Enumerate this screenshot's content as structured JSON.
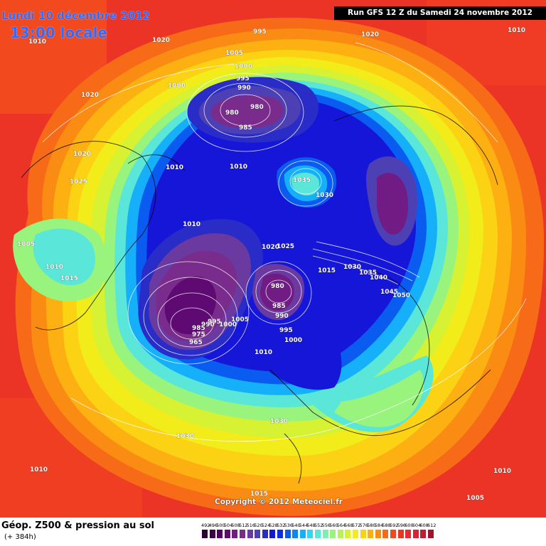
{
  "header": {
    "valid_date": "Lundi 10 décembre 2012",
    "valid_hour": "13:00 locale",
    "run": "Run GFS 12 Z du Samedi 24 novembre 2012"
  },
  "footer": {
    "title": "Géop. Z500 & pression au sol",
    "lead_time": "(+ 384h)",
    "copyright": "Copyright © 2012 Meteociel.fr"
  },
  "legend": {
    "ticks": [
      "492",
      "496",
      "500",
      "504",
      "508",
      "512",
      "516",
      "520",
      "524",
      "528",
      "532",
      "536",
      "540",
      "544",
      "548",
      "552",
      "556",
      "560",
      "564",
      "568",
      "572",
      "576",
      "580",
      "584",
      "588",
      "592",
      "596",
      "600",
      "604",
      "608",
      "612"
    ],
    "colors": [
      "#2a0030",
      "#3a0048",
      "#4b005e",
      "#5e0a72",
      "#701c84",
      "#7a2c8c",
      "#6a3aa0",
      "#4c40b4",
      "#2a2cc8",
      "#1616d8",
      "#0a2ee6",
      "#0a5cf0",
      "#0a86f6",
      "#16b0fa",
      "#34d4f6",
      "#5ae6d8",
      "#7cf0b0",
      "#98f47c",
      "#b6f454",
      "#d6f232",
      "#f2ec1a",
      "#fcd214",
      "#fcb012",
      "#fa8c14",
      "#f66a18",
      "#f24a1e",
      "#ec3426",
      "#e42c30",
      "#d62436",
      "#c01c34",
      "#a0142a"
    ],
    "colors_note_unused": ""
  },
  "pressure_labels": [
    {
      "text": "995"
    },
    {
      "text": "1020"
    },
    {
      "text": "1010"
    },
    {
      "text": "1020"
    },
    {
      "text": "1010"
    },
    {
      "text": "1005"
    },
    {
      "text": "1000"
    },
    {
      "text": "995"
    },
    {
      "text": "990"
    },
    {
      "text": "980"
    },
    {
      "text": "980"
    },
    {
      "text": "985"
    },
    {
      "text": "1000"
    },
    {
      "text": "1020"
    },
    {
      "text": "1020"
    },
    {
      "text": "1025"
    },
    {
      "text": "1010"
    },
    {
      "text": "1010"
    },
    {
      "text": "1035"
    },
    {
      "text": "1030"
    },
    {
      "text": "1010"
    },
    {
      "text": "1005"
    },
    {
      "text": "1010"
    },
    {
      "text": "1015"
    },
    {
      "text": "1020"
    },
    {
      "text": "1025"
    },
    {
      "text": "1015"
    },
    {
      "text": "1030"
    },
    {
      "text": "1035"
    },
    {
      "text": "1040"
    },
    {
      "text": "1045"
    },
    {
      "text": "1050"
    },
    {
      "text": "980"
    },
    {
      "text": "985"
    },
    {
      "text": "990"
    },
    {
      "text": "995"
    },
    {
      "text": "1000"
    },
    {
      "text": "1005"
    },
    {
      "text": "1000"
    },
    {
      "text": "995"
    },
    {
      "text": "990"
    },
    {
      "text": "985"
    },
    {
      "text": "975"
    },
    {
      "text": "965"
    },
    {
      "text": "1010"
    },
    {
      "text": "1030"
    },
    {
      "text": "1030"
    },
    {
      "text": "1010"
    },
    {
      "text": "1015"
    },
    {
      "text": "1010"
    },
    {
      "text": "1005"
    }
  ]
}
